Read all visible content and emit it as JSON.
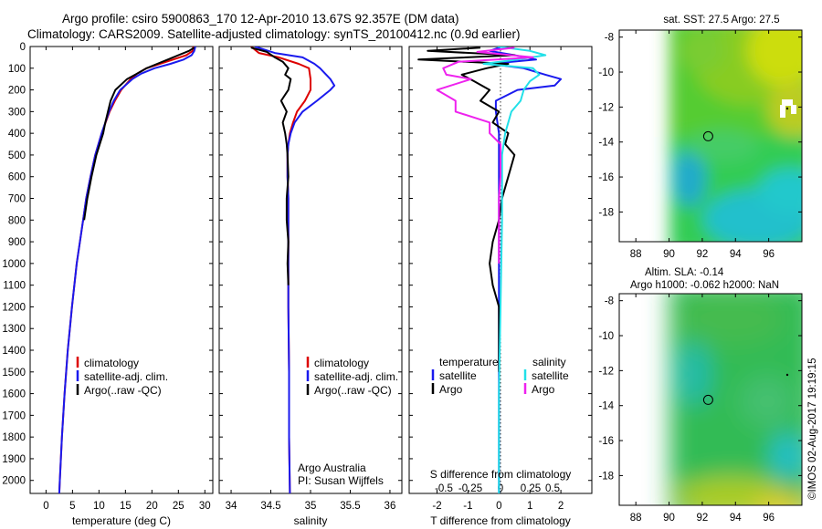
{
  "header": {
    "title_line1": "Argo profile: csiro 5900863_170 12-Apr-2010 13.67S 92.357E (DM data)",
    "title_line2": "Climatology: CARS2009. Satellite-adjusted climatology: synTS_20100412.nc (0.9d earlier)"
  },
  "colors": {
    "climatology": "#dd0000",
    "satellite": "#1a1aee",
    "argo": "#000000",
    "satellite_salinity": "#22e0e8",
    "argo_salinity": "#ee22ee"
  },
  "chart_data": [
    {
      "type": "line",
      "xlabel": "temperature (deg C)",
      "xticks": [
        0,
        5,
        10,
        15,
        20,
        25,
        30
      ],
      "xlim": [
        -3,
        31.5
      ],
      "ylim": [
        2060,
        0
      ],
      "yticks": [
        0,
        100,
        200,
        300,
        400,
        500,
        600,
        700,
        800,
        900,
        1000,
        1100,
        1200,
        1300,
        1400,
        1500,
        1600,
        1700,
        1800,
        1900,
        2000
      ],
      "legend": [
        "climatology",
        "satellite-adj. clim.",
        "Argo(..raw -QC)"
      ],
      "series": [
        {
          "name": "climatology",
          "depth": [
            0,
            20,
            40,
            60,
            80,
            100,
            125,
            150,
            200,
            250,
            300,
            400,
            500,
            600,
            700,
            800,
            900,
            1000,
            1200,
            1400,
            1600,
            1800,
            2000,
            2060
          ],
          "values": [
            27.8,
            27.7,
            26.5,
            24.0,
            21.5,
            19.0,
            17.2,
            16.0,
            14.2,
            13.0,
            12.0,
            10.5,
            9.3,
            8.4,
            7.6,
            7.0,
            6.4,
            5.8,
            4.9,
            4.1,
            3.5,
            3.0,
            2.6,
            2.5
          ]
        },
        {
          "name": "satellite-adj. clim.",
          "depth": [
            0,
            20,
            40,
            60,
            80,
            100,
            125,
            150,
            200,
            250,
            300,
            400,
            500,
            600,
            700,
            800,
            900,
            1000,
            1200,
            1400,
            1600,
            1800,
            2000,
            2060
          ],
          "values": [
            28.2,
            28.0,
            27.5,
            26.0,
            23.5,
            20.5,
            18.0,
            16.3,
            14.0,
            12.8,
            11.9,
            10.5,
            9.3,
            8.4,
            7.6,
            7.0,
            6.4,
            5.8,
            4.9,
            4.1,
            3.5,
            3.0,
            2.6,
            2.5
          ]
        },
        {
          "name": "Argo(..raw -QC)",
          "depth": [
            5,
            20,
            40,
            60,
            80,
            100,
            125,
            150,
            200,
            250,
            300,
            350,
            400,
            500,
            600,
            700,
            800
          ],
          "values": [
            28.0,
            27.0,
            25.0,
            23.0,
            21.0,
            19.0,
            17.2,
            15.3,
            13.1,
            12.2,
            11.7,
            11.2,
            10.8,
            9.5,
            8.6,
            7.8,
            7.2
          ]
        }
      ]
    },
    {
      "type": "line",
      "xlabel": "salinity",
      "xticks": [
        34,
        34.5,
        35,
        35.5,
        36
      ],
      "xlim": [
        33.85,
        36.15
      ],
      "ylim": [
        2060,
        0
      ],
      "legend": [
        "climatology",
        "satellite-adj. clim.",
        "Argo(..raw -QC)"
      ],
      "annotations": [
        "Argo Australia",
        "PI: Susan Wijffels"
      ],
      "series": [
        {
          "name": "climatology",
          "depth": [
            0,
            30,
            50,
            80,
            100,
            150,
            200,
            250,
            300,
            350,
            400,
            450,
            500,
            600,
            700,
            800,
            900,
            1000,
            1200,
            1500,
            1800,
            2060
          ],
          "values": [
            34.25,
            34.35,
            34.6,
            34.85,
            34.98,
            35.0,
            35.0,
            34.93,
            34.83,
            34.78,
            34.74,
            34.72,
            34.71,
            34.71,
            34.72,
            34.72,
            34.72,
            34.72,
            34.72,
            34.73,
            34.73,
            34.74
          ]
        },
        {
          "name": "satellite-adj. clim.",
          "depth": [
            0,
            30,
            50,
            80,
            100,
            150,
            180,
            200,
            250,
            300,
            350,
            400,
            450,
            500,
            600,
            700,
            800,
            900,
            1000,
            1200,
            1500,
            1800,
            2060
          ],
          "values": [
            34.3,
            34.55,
            34.9,
            35.05,
            35.12,
            35.25,
            35.3,
            35.25,
            35.08,
            34.9,
            34.8,
            34.75,
            34.72,
            34.71,
            34.71,
            34.72,
            34.72,
            34.72,
            34.72,
            34.72,
            34.73,
            34.73,
            34.74
          ]
        },
        {
          "name": "Argo(..raw -QC)",
          "depth": [
            5,
            25,
            50,
            70,
            100,
            130,
            150,
            200,
            250,
            300,
            350,
            400,
            450,
            500,
            600,
            700,
            800,
            900,
            1000,
            1100
          ],
          "values": [
            34.25,
            34.45,
            34.55,
            34.65,
            34.72,
            34.68,
            34.75,
            34.72,
            34.63,
            34.7,
            34.65,
            34.68,
            34.7,
            34.71,
            34.72,
            34.7,
            34.7,
            34.72,
            34.71,
            34.72
          ]
        }
      ]
    },
    {
      "type": "line",
      "xlabel": "T difference from climatology",
      "xlabel_top": "S difference from climatology",
      "xticks": [
        -2,
        -1,
        0,
        1,
        2
      ],
      "xticks_top": [
        "-0.5",
        "-0.25",
        "0",
        "0.25",
        "0.5"
      ],
      "xlim": [
        -2.9,
        3.0
      ],
      "ylim": [
        2060,
        0
      ],
      "legend_headers": [
        "temperature",
        "salinity"
      ],
      "legend": [
        "satellite",
        "Argo",
        "satellite",
        "Argo"
      ],
      "series": [
        {
          "name": "satellite",
          "kind": "temperature",
          "depth": [
            0,
            20,
            40,
            60,
            80,
            100,
            130,
            150,
            180,
            200,
            250,
            300,
            400,
            500,
            600,
            800,
            1000,
            1500,
            2060
          ],
          "values": [
            0.1,
            -0.3,
            0.5,
            1.2,
            -0.3,
            0.8,
            1.5,
            2.0,
            1.8,
            0.6,
            -0.1,
            -0.1,
            0.0,
            0.0,
            0.0,
            0.0,
            0.0,
            0.0,
            0.0
          ]
        },
        {
          "name": "Argo",
          "kind": "temperature",
          "depth": [
            5,
            20,
            40,
            60,
            80,
            100,
            130,
            160,
            200,
            250,
            300,
            350,
            400,
            450,
            500,
            600,
            700,
            800,
            900,
            1000,
            1100,
            1200,
            1500
          ],
          "values": [
            -0.6,
            -2.3,
            0.5,
            -2.6,
            0.3,
            -0.4,
            -1.2,
            -0.8,
            -0.3,
            -0.6,
            0.0,
            -0.2,
            0.3,
            0.2,
            0.5,
            0.3,
            0.1,
            0.0,
            -0.2,
            -0.3,
            -0.2,
            0.0,
            0.0
          ]
        },
        {
          "name": "satellite",
          "kind": "salinity",
          "depth": [
            0,
            20,
            40,
            60,
            80,
            100,
            130,
            160,
            200,
            250,
            300,
            350,
            400,
            500,
            800,
            1200,
            1600,
            2060
          ],
          "values": [
            -0.05,
            1.0,
            1.5,
            0.6,
            -0.5,
            1.1,
            1.3,
            1.0,
            0.8,
            0.7,
            0.4,
            0.3,
            0.2,
            0.1,
            0.1,
            0.05,
            0.0,
            0.0
          ]
        },
        {
          "name": "Argo",
          "kind": "salinity",
          "depth": [
            5,
            25,
            50,
            70,
            100,
            130,
            150,
            200,
            250,
            300,
            350,
            400,
            450,
            500,
            600,
            700,
            800,
            900,
            1000
          ],
          "values": [
            0.5,
            -0.7,
            1.1,
            -1.3,
            -1.8,
            -1.7,
            -0.9,
            -2.0,
            -1.4,
            -1.4,
            -0.3,
            -0.3,
            0.05,
            0.05,
            0.05,
            0.0,
            0.0,
            0.0,
            0.0
          ]
        }
      ]
    },
    {
      "type": "heatmap",
      "title": "sat. SST: 27.5  Argo: 27.5",
      "xticks": [
        88,
        90,
        92,
        94,
        96
      ],
      "yticks": [
        -8,
        -10,
        -12,
        -14,
        -16,
        -18
      ],
      "xlim": [
        87,
        98
      ],
      "ylim": [
        -19.7,
        -7.6
      ],
      "data_xlim": [
        90,
        98
      ],
      "argo_position": [
        92.357,
        -13.67
      ]
    },
    {
      "type": "heatmap",
      "title_line1": "Altim. SLA: -0.14",
      "title_line2": "Argo h1000: -0.062  h2000: NaN",
      "xticks": [
        88,
        90,
        92,
        94,
        96
      ],
      "yticks": [
        -8,
        -10,
        -12,
        -14,
        -16,
        -18
      ],
      "xlim": [
        87,
        98
      ],
      "ylim": [
        -19.7,
        -7.6
      ],
      "data_xlim": [
        90,
        98
      ],
      "argo_position": [
        92.357,
        -13.67
      ]
    }
  ],
  "footer": {
    "timestamp": "©IMOS 02-Aug-2017 19:19:15"
  }
}
